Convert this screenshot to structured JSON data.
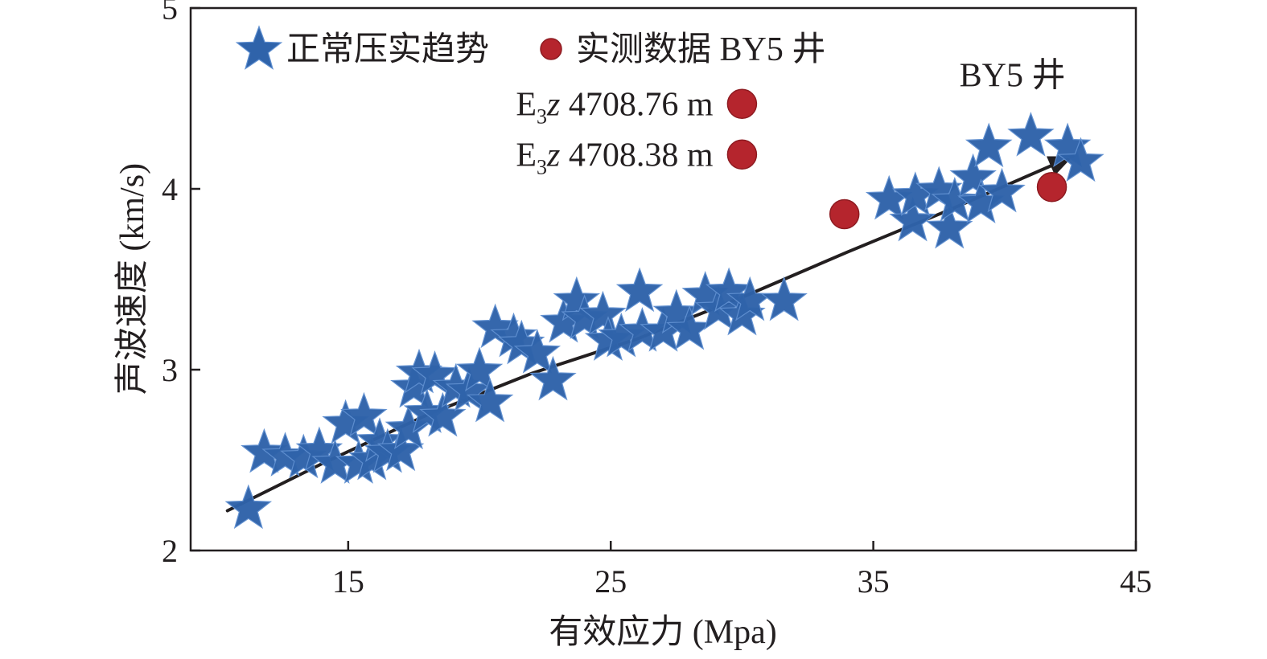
{
  "chart_data": {
    "type": "scatter",
    "xlabel": "有效应力 (Mpa)",
    "ylabel": "声波速度 (km/s)",
    "xlim": [
      9,
      45
    ],
    "ylim": [
      2.0,
      5.0
    ],
    "xticks": [
      15,
      25,
      35,
      45
    ],
    "yticks": [
      2,
      3,
      4,
      5
    ],
    "grid": false,
    "legend_position": "top-left",
    "series": [
      {
        "name": "正常压实趋势",
        "marker": "star",
        "color": "#2f63aa",
        "points": [
          [
            11.2,
            2.23
          ],
          [
            11.8,
            2.54
          ],
          [
            12.6,
            2.52
          ],
          [
            13.3,
            2.51
          ],
          [
            13.9,
            2.55
          ],
          [
            14.5,
            2.48
          ],
          [
            14.9,
            2.7
          ],
          [
            15.4,
            2.48
          ],
          [
            15.6,
            2.74
          ],
          [
            15.9,
            2.5
          ],
          [
            16.2,
            2.6
          ],
          [
            16.5,
            2.54
          ],
          [
            17.0,
            2.55
          ],
          [
            17.3,
            2.67
          ],
          [
            17.5,
            2.9
          ],
          [
            17.7,
            2.98
          ],
          [
            18.0,
            2.76
          ],
          [
            18.3,
            2.97
          ],
          [
            18.6,
            2.74
          ],
          [
            19.1,
            2.9
          ],
          [
            19.6,
            2.88
          ],
          [
            20.0,
            2.99
          ],
          [
            20.4,
            2.82
          ],
          [
            20.6,
            3.23
          ],
          [
            21.3,
            3.18
          ],
          [
            21.6,
            3.14
          ],
          [
            22.2,
            3.09
          ],
          [
            22.8,
            2.94
          ],
          [
            23.2,
            3.26
          ],
          [
            23.7,
            3.38
          ],
          [
            24.0,
            3.28
          ],
          [
            24.7,
            3.3
          ],
          [
            24.9,
            3.16
          ],
          [
            25.4,
            3.18
          ],
          [
            26.1,
            3.43
          ],
          [
            26.2,
            3.21
          ],
          [
            27.0,
            3.21
          ],
          [
            27.5,
            3.31
          ],
          [
            28.0,
            3.22
          ],
          [
            28.6,
            3.41
          ],
          [
            29.1,
            3.33
          ],
          [
            29.5,
            3.43
          ],
          [
            30.0,
            3.3
          ],
          [
            30.3,
            3.38
          ],
          [
            31.6,
            3.38
          ],
          [
            35.6,
            3.94
          ],
          [
            36.5,
            3.82
          ],
          [
            36.6,
            3.96
          ],
          [
            37.5,
            3.99
          ],
          [
            37.9,
            3.78
          ],
          [
            38.1,
            3.93
          ],
          [
            38.8,
            4.06
          ],
          [
            39.1,
            3.92
          ],
          [
            39.4,
            4.23
          ],
          [
            39.9,
            3.98
          ],
          [
            41.0,
            4.29
          ],
          [
            42.4,
            4.23
          ],
          [
            42.9,
            4.15
          ]
        ]
      },
      {
        "name": "实测数据 BY5 井",
        "marker": "circle",
        "color": "#b5252d",
        "points": [
          [
            30.0,
            4.47
          ],
          [
            30.0,
            4.19
          ],
          [
            33.9,
            3.86
          ],
          [
            41.8,
            4.01
          ]
        ]
      }
    ],
    "trend_arrow": {
      "color": "#231f20",
      "points": [
        [
          10.4,
          2.22
        ],
        [
          14.0,
          2.48
        ],
        [
          18.0,
          2.75
        ],
        [
          22.0,
          2.98
        ],
        [
          26.0,
          3.17
        ],
        [
          30.0,
          3.4
        ],
        [
          34.0,
          3.65
        ],
        [
          38.0,
          3.89
        ],
        [
          42.6,
          4.18
        ]
      ]
    },
    "annotations": [
      {
        "text": "BY5 井",
        "x": 40.3,
        "y": 4.63
      },
      {
        "label_main": "E",
        "label_sub": "3",
        "label_italic": "z",
        "label_rest": " 4708.76 m",
        "x": 28.9,
        "y": 4.47
      },
      {
        "label_main": "E",
        "label_sub": "3",
        "label_italic": "z",
        "label_rest": " 4708.38 m",
        "x": 28.9,
        "y": 4.19
      }
    ]
  }
}
